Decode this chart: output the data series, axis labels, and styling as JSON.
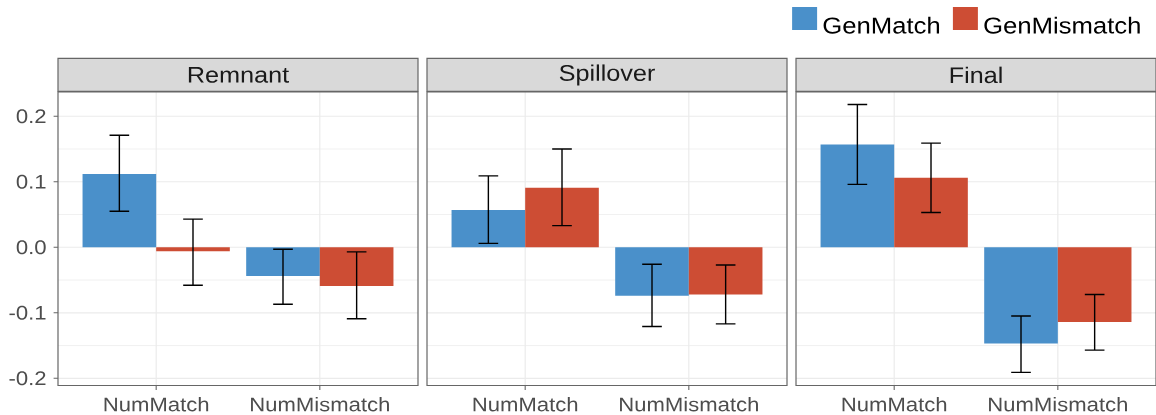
{
  "chart_data": [
    {
      "type": "bar",
      "title": "Remnant",
      "categories": [
        "NumMatch",
        "NumMismatch"
      ],
      "series": [
        {
          "color": "#4a90ca",
          "values": [
            0.112,
            -0.044
          ],
          "errors": [
            [
              0.055,
              0.171
            ],
            [
              -0.087,
              -0.003
            ]
          ]
        },
        {
          "color": "#cd4d34",
          "values": [
            -0.006,
            -0.059
          ],
          "errors": [
            [
              -0.058,
              0.043
            ],
            [
              -0.109,
              -0.007
            ]
          ]
        }
      ],
      "ylim": [
        -0.211,
        0.237
      ],
      "yticks": [
        -0.2,
        -0.1,
        {
          "value": 0,
          "label": "0.0"
        },
        0.1,
        0.2
      ],
      "grid": true
    },
    {
      "type": "bar",
      "title": "Spillover",
      "categories": [
        "NumMatch",
        "NumMismatch"
      ],
      "series": [
        {
          "color": "#4a90ca",
          "values": [
            0.057,
            -0.074
          ],
          "errors": [
            [
              0.006,
              0.109
            ],
            [
              -0.121,
              -0.026
            ]
          ]
        },
        {
          "color": "#cd4d34",
          "values": [
            0.091,
            -0.072
          ],
          "errors": [
            [
              0.033,
              0.15
            ],
            [
              -0.117,
              -0.027
            ]
          ]
        }
      ],
      "ylim": [
        -0.211,
        0.237
      ],
      "yticks": [
        -0.2,
        -0.1,
        0,
        0.1,
        0.2
      ],
      "grid": true,
      "tick_labels": "x"
    },
    {
      "type": "bar",
      "title": "Final",
      "categories": [
        "NumMatch",
        "NumMismatch"
      ],
      "series": [
        {
          "name": "GenMatch",
          "color": "#4a90ca",
          "values": [
            0.157,
            -0.147
          ],
          "errors": [
            [
              0.096,
              0.218
            ],
            [
              -0.191,
              -0.105
            ]
          ]
        },
        {
          "name": "GenMismatch",
          "color": "#cd4d34",
          "values": [
            0.106,
            -0.114
          ],
          "errors": [
            [
              0.053,
              0.159
            ],
            [
              -0.157,
              -0.072
            ]
          ]
        }
      ],
      "ylim": [
        -0.211,
        0.237
      ],
      "yticks": [
        -0.2,
        -0.1,
        0,
        0.1,
        0.2
      ],
      "grid": true,
      "tick_labels": "x",
      "legend": "top right"
    }
  ]
}
